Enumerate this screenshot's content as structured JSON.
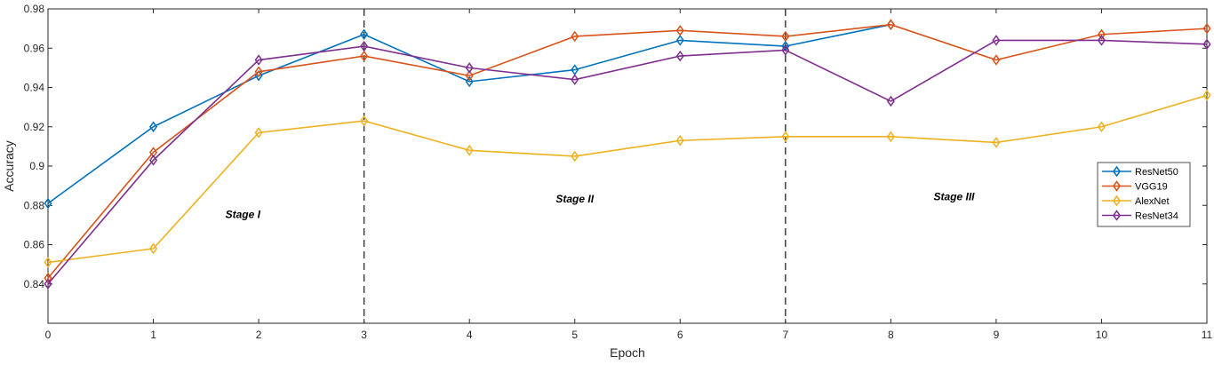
{
  "chart_data": {
    "type": "line",
    "xlabel": "Epoch",
    "ylabel": "Accuracy",
    "xlim": [
      0,
      11
    ],
    "ylim": [
      0.82,
      0.98
    ],
    "xticks": [
      0,
      1,
      2,
      3,
      4,
      5,
      6,
      7,
      8,
      9,
      10,
      11
    ],
    "xtick_labels": [
      "0",
      "1",
      "2",
      "3",
      "4",
      "5",
      "6",
      "7",
      "8",
      "9",
      "10",
      "11"
    ],
    "yticks": [
      0.84,
      0.86,
      0.88,
      0.9,
      0.92,
      0.94,
      0.96,
      0.98
    ],
    "ytick_labels": [
      "0.84",
      "0.86",
      "0.88",
      "0.9",
      "0.92",
      "0.94",
      "0.96",
      "0.98"
    ],
    "grid": false,
    "legend_position": "right",
    "x": [
      0,
      1,
      2,
      3,
      4,
      5,
      6,
      7,
      8,
      9,
      10,
      11
    ],
    "series": [
      {
        "name": "ResNet50",
        "color": "#0072BD",
        "marker": "diamond",
        "values": [
          0.881,
          0.92,
          0.946,
          0.967,
          0.943,
          0.949,
          0.964,
          0.961,
          0.972,
          null,
          null,
          null
        ]
      },
      {
        "name": "VGG19",
        "color": "#D95319",
        "marker": "diamond",
        "values": [
          0.843,
          0.907,
          0.948,
          0.956,
          0.946,
          0.966,
          0.969,
          0.966,
          0.972,
          0.954,
          0.967,
          0.97
        ]
      },
      {
        "name": "AlexNet",
        "color": "#EDB120",
        "marker": "diamond",
        "values": [
          0.851,
          0.858,
          0.917,
          0.923,
          0.908,
          0.905,
          0.913,
          0.915,
          0.915,
          0.912,
          0.92,
          0.936
        ]
      },
      {
        "name": "ResNet34",
        "color": "#7E2F8E",
        "marker": "diamond",
        "values": [
          0.84,
          0.903,
          0.954,
          0.961,
          0.95,
          0.944,
          0.956,
          0.959,
          0.933,
          0.964,
          0.964,
          0.962
        ]
      }
    ],
    "stage_dividers": [
      3,
      7
    ],
    "annotations": [
      {
        "text": "Stage I",
        "x": 1.85,
        "y": 0.8735
      },
      {
        "text": "Stage II",
        "x": 5.0,
        "y": 0.8815
      },
      {
        "text": "Stage III",
        "x": 8.6,
        "y": 0.8825
      }
    ]
  }
}
